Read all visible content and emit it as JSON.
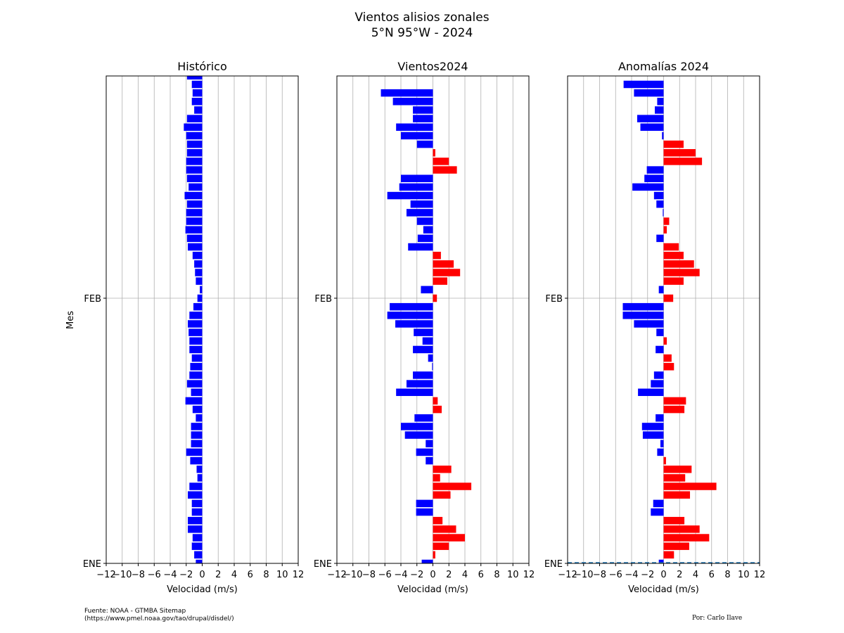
{
  "figure": {
    "title_line1": "Vientos alisios zonales",
    "title_line2": "5°N 95°W - 2024",
    "source_line1": "Fuente: NOAA - GTMBA Sitemap",
    "source_line2": "(https://www.pmel.noaa.gov/tao/drupal/disdel/)",
    "author": "Por: Carlo Ilave"
  },
  "colors": {
    "negative": "#0000ff",
    "positive": "#ff0000",
    "grid": "#b0b0b0"
  },
  "chart_data": [
    {
      "type": "bar",
      "orientation": "horizontal",
      "title": "Histórico",
      "xlabel": "Velocidad (m/s)",
      "ylabel": "Mes",
      "xlim": [
        -12,
        12
      ],
      "xticks": [
        "−12",
        "−10",
        "−8",
        "−6",
        "−4",
        "−2",
        "0",
        "2",
        "4",
        "6",
        "8",
        "10",
        "12"
      ],
      "yticks": [
        "ENE",
        "FEB"
      ],
      "grid": true,
      "values": [
        -0.8,
        -1.0,
        -1.3,
        -1.2,
        -1.8,
        -1.8,
        -1.3,
        -1.3,
        -1.8,
        -1.6,
        -0.6,
        -0.7,
        -1.5,
        -2.0,
        -1.4,
        -1.4,
        -1.4,
        -0.8,
        -1.2,
        -2.1,
        -1.4,
        -1.9,
        -1.6,
        -1.5,
        -1.3,
        -1.6,
        -1.6,
        -1.7,
        -1.8,
        -1.6,
        -1.1,
        -0.6,
        -0.3,
        -0.8,
        -0.9,
        -1.0,
        -1.2,
        -1.8,
        -1.9,
        -2.1,
        -2.0,
        -2.0,
        -1.9,
        -2.2,
        -1.7,
        -1.9,
        -2.0,
        -2.0,
        -1.9,
        -1.9,
        -2.0,
        -2.3,
        -1.9,
        -1.0,
        -1.3,
        -1.2,
        -1.3,
        -1.9,
        -1.3,
        -1.6,
        -1.8
      ]
    },
    {
      "type": "bar",
      "orientation": "horizontal",
      "title": "Vientos2024",
      "xlabel": "Velocidad (m/s)",
      "xlim": [
        -12,
        12
      ],
      "xticks": [
        "−12",
        "−10",
        "−8",
        "−6",
        "−4",
        "−2",
        "0",
        "2",
        "4",
        "6",
        "8",
        "10",
        "12"
      ],
      "yticks": [
        "ENE",
        "FEB"
      ],
      "grid": true,
      "values": [
        -1.4,
        0.3,
        2.0,
        4.0,
        2.9,
        1.2,
        -2.1,
        -2.1,
        2.2,
        4.8,
        0.9,
        2.3,
        -0.9,
        -2.1,
        -0.9,
        -3.5,
        -4.0,
        -2.3,
        1.1,
        0.6,
        -4.6,
        -3.3,
        -2.5,
        -0.1,
        -0.6,
        -2.5,
        -1.3,
        -2.4,
        -4.7,
        -5.7,
        -5.4,
        0.5,
        -1.5,
        1.8,
        3.4,
        2.6,
        1.0,
        -3.1,
        -1.9,
        -1.2,
        -2.0,
        -3.3,
        -2.8,
        -5.7,
        -4.2,
        -4.0,
        3.0,
        2.0,
        0.3,
        -2.0,
        -4.0,
        -4.6,
        -2.5,
        -2.5,
        -5.0,
        -6.5
      ]
    },
    {
      "type": "bar",
      "orientation": "horizontal",
      "title": "Anomalías 2024",
      "xlabel": "Velocidad (m/s)",
      "xlim": [
        -12,
        12
      ],
      "xticks": [
        "−12",
        "−10",
        "−8",
        "−6",
        "−4",
        "−2",
        "0",
        "2",
        "4",
        "6",
        "8",
        "10",
        "12"
      ],
      "yticks": [
        "ENE",
        "FEB"
      ],
      "grid": true,
      "values": [
        -0.6,
        1.3,
        3.2,
        5.7,
        4.5,
        2.6,
        -1.6,
        -1.3,
        3.3,
        6.6,
        2.7,
        3.5,
        0.3,
        -0.8,
        -0.4,
        -2.6,
        -2.7,
        -1.0,
        2.6,
        2.8,
        -3.2,
        -1.6,
        -1.2,
        1.3,
        1.0,
        -1.0,
        0.4,
        -0.9,
        -3.7,
        -5.1,
        -5.1,
        1.2,
        -0.6,
        2.5,
        4.5,
        3.8,
        2.5,
        1.9,
        -0.9,
        0.4,
        0.7,
        -0.1,
        -0.9,
        -1.2,
        -3.9,
        -2.4,
        -2.1,
        4.8,
        4.0,
        2.5,
        -0.2,
        -2.9,
        -3.3,
        -1.1,
        -0.8,
        -3.7,
        -5.0
      ]
    }
  ]
}
